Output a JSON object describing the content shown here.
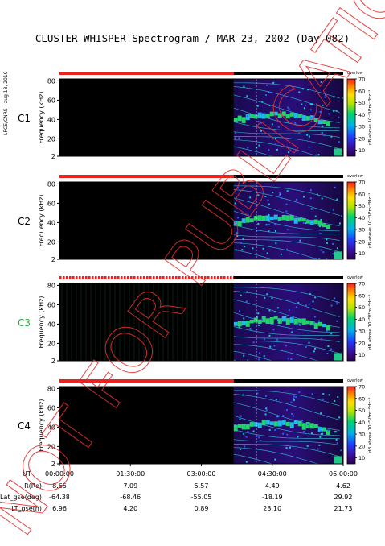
{
  "title": "CLUSTER-WHISPER Spectrogram / MAR 23, 2002 (Day 082)",
  "credit": "LPCE/CNRS - aug 18, 2010",
  "watermark": "NOT FOR PUBLICATION",
  "colors": {
    "status_on": "#e8231e",
    "status_off": "#000000",
    "watermark": "#e03030",
    "c3_label": "#1fae3a"
  },
  "chart_data": {
    "type": "heatmap",
    "title": "CLUSTER-WHISPER Spectrogram / MAR 23, 2002 (Day 082)",
    "ylabel": "Frequency (kHz)",
    "ylim": [
      2,
      82
    ],
    "yticks": [
      "80",
      "60",
      "40",
      "20",
      "2"
    ],
    "colorbar": {
      "label": "dB above 10⁻⁸V²m⁻²Hz⁻¹",
      "range": [
        5,
        70
      ],
      "ticks": [
        "70",
        "60",
        "50",
        "40",
        "30",
        "20",
        "10"
      ],
      "corner_label": "overlow"
    },
    "time_axis": {
      "label": "UT",
      "ticks": [
        "00:00:00",
        "01:30:00",
        "03:00:00",
        "04:30:00",
        "06:00:00"
      ]
    },
    "panels": [
      {
        "name": "C1",
        "data_start": "03:41:00",
        "status_switch": "03:41:00"
      },
      {
        "name": "C2",
        "data_start": "03:41:00",
        "status_switch": "03:41:00"
      },
      {
        "name": "C3",
        "data_start": "03:41:00",
        "status_switch": "03:41:00",
        "status_dashed": true
      },
      {
        "name": "C4",
        "data_start": "03:41:00",
        "status_switch": "03:41:00"
      }
    ],
    "ephemeris": [
      {
        "label": "R(Re)",
        "values": [
          "8.65",
          "7.09",
          "5.57",
          "4.49",
          "4.62"
        ]
      },
      {
        "label": "Lat_gse(deg)",
        "values": [
          "-64.38",
          "-68.46",
          "-55.05",
          "-18.19",
          "29.92"
        ]
      },
      {
        "label": "LT_gse(h)",
        "values": [
          "6.96",
          "4.20",
          "0.89",
          "23.10",
          "21.73"
        ]
      }
    ]
  }
}
